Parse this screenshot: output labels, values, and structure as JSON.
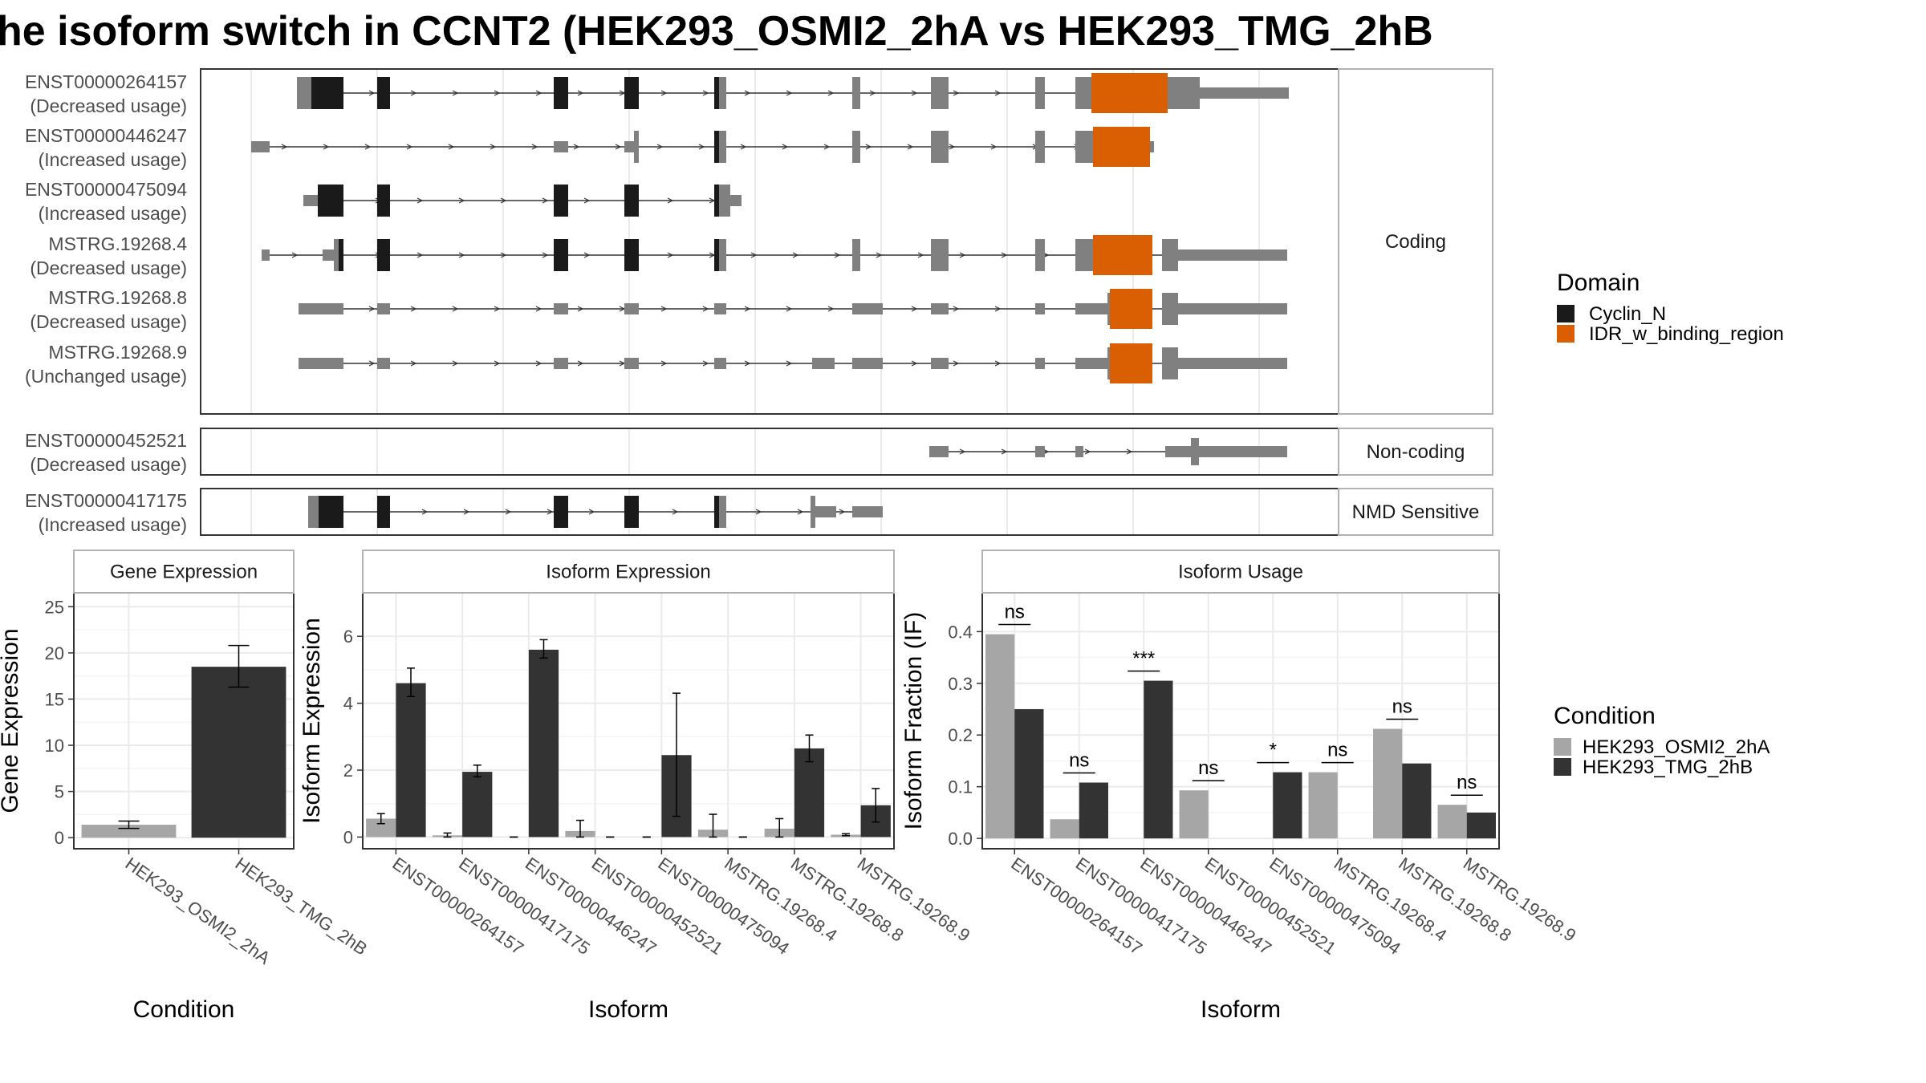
{
  "title": "he isoform switch in CCNT2 (HEK293_OSMI2_2hA vs HEK293_TMG_2hB",
  "colors": {
    "cyclin": "#1a1a1a",
    "idr": "#d95f02",
    "exon": "#808080",
    "cond1": "#a6a6a6",
    "cond2": "#333333",
    "grid": "#ebebeb",
    "border": "#333333"
  },
  "structure": {
    "facets": [
      {
        "label": "Coding",
        "transcripts": [
          {
            "id": "ENST00000264157",
            "usage": "(Decreased usage)"
          },
          {
            "id": "ENST00000446247",
            "usage": "(Increased usage)"
          },
          {
            "id": "ENST00000475094",
            "usage": "(Increased usage)"
          },
          {
            "id": "MSTRG.19268.4",
            "usage": "(Decreased usage)"
          },
          {
            "id": "MSTRG.19268.8",
            "usage": "(Decreased usage)"
          },
          {
            "id": "MSTRG.19268.9",
            "usage": "(Unchanged usage)"
          }
        ]
      },
      {
        "label": "Non-coding",
        "transcripts": [
          {
            "id": "ENST00000452521",
            "usage": "(Decreased usage)"
          }
        ]
      },
      {
        "label": "NMD Sensitive",
        "transcripts": [
          {
            "id": "ENST00000417175",
            "usage": "(Increased usage)"
          }
        ]
      }
    ]
  },
  "domain_legend": {
    "title": "Domain",
    "items": [
      {
        "label": "Cyclin_N",
        "color": "#1a1a1a"
      },
      {
        "label": "IDR_w_binding_region",
        "color": "#d95f02"
      }
    ]
  },
  "condition_legend": {
    "title": "Condition",
    "items": [
      {
        "label": "HEK293_OSMI2_2hA",
        "color": "#a6a6a6"
      },
      {
        "label": "HEK293_TMG_2hB",
        "color": "#333333"
      }
    ]
  },
  "chart_data": [
    {
      "type": "bar",
      "title": "Gene Expression",
      "xlabel": "Condition",
      "ylabel": "Gene Expression",
      "categories": [
        "HEK293_OSMI2_2hA",
        "HEK293_TMG_2hB"
      ],
      "values": [
        1.4,
        18.5
      ],
      "error_low": [
        1.0,
        16.3
      ],
      "error_high": [
        1.8,
        20.8
      ],
      "yticks": [
        0,
        5,
        10,
        15,
        20,
        25
      ],
      "ylim": [
        -1.2,
        26.5
      ]
    },
    {
      "type": "bar",
      "title": "Isoform Expression",
      "xlabel": "Isoform",
      "ylabel": "Isoform Expression",
      "categories": [
        "ENST00000264157",
        "ENST00000417175",
        "ENST00000446247",
        "ENST00000452521",
        "ENST00000475094",
        "MSTRG.19268.4",
        "MSTRG.19268.8",
        "MSTRG.19268.9"
      ],
      "series": [
        {
          "name": "HEK293_OSMI2_2hA",
          "values": [
            0.55,
            0.05,
            0.0,
            0.18,
            0.0,
            0.22,
            0.25,
            0.07
          ],
          "error_low": [
            0.4,
            0.0,
            0.0,
            0.0,
            0.0,
            0.0,
            0.0,
            0.04
          ],
          "error_high": [
            0.7,
            0.12,
            0.0,
            0.5,
            0.0,
            0.68,
            0.55,
            0.1
          ]
        },
        {
          "name": "HEK293_TMG_2hB",
          "values": [
            4.6,
            1.95,
            5.6,
            0.0,
            2.45,
            0.0,
            2.65,
            0.95
          ],
          "error_low": [
            4.2,
            1.8,
            5.35,
            0.0,
            0.62,
            0.0,
            2.25,
            0.45
          ],
          "error_high": [
            5.05,
            2.15,
            5.9,
            0.0,
            4.3,
            0.0,
            3.05,
            1.45
          ]
        }
      ],
      "yticks": [
        0,
        2,
        4,
        6
      ],
      "ylim": [
        -0.35,
        7.3
      ]
    },
    {
      "type": "bar",
      "title": "Isoform Usage",
      "xlabel": "Isoform",
      "ylabel": "Isoform Fraction (IF)",
      "categories": [
        "ENST00000264157",
        "ENST00000417175",
        "ENST00000446247",
        "ENST00000452521",
        "ENST00000475094",
        "MSTRG.19268.4",
        "MSTRG.19268.8",
        "MSTRG.19268.9"
      ],
      "series": [
        {
          "name": "HEK293_OSMI2_2hA",
          "values": [
            0.395,
            0.037,
            0.0,
            0.093,
            0.0,
            0.128,
            0.212,
            0.065
          ]
        },
        {
          "name": "HEK293_TMG_2hB",
          "values": [
            0.25,
            0.108,
            0.305,
            0.0,
            0.128,
            0.0,
            0.145,
            0.05
          ]
        }
      ],
      "significance": [
        "ns",
        "ns",
        "***",
        "ns",
        "*",
        "ns",
        "ns",
        "ns"
      ],
      "yticks": [
        "0.0",
        "0.1",
        "0.2",
        "0.3",
        "0.4"
      ],
      "ylim": [
        -0.02,
        0.475
      ]
    }
  ]
}
